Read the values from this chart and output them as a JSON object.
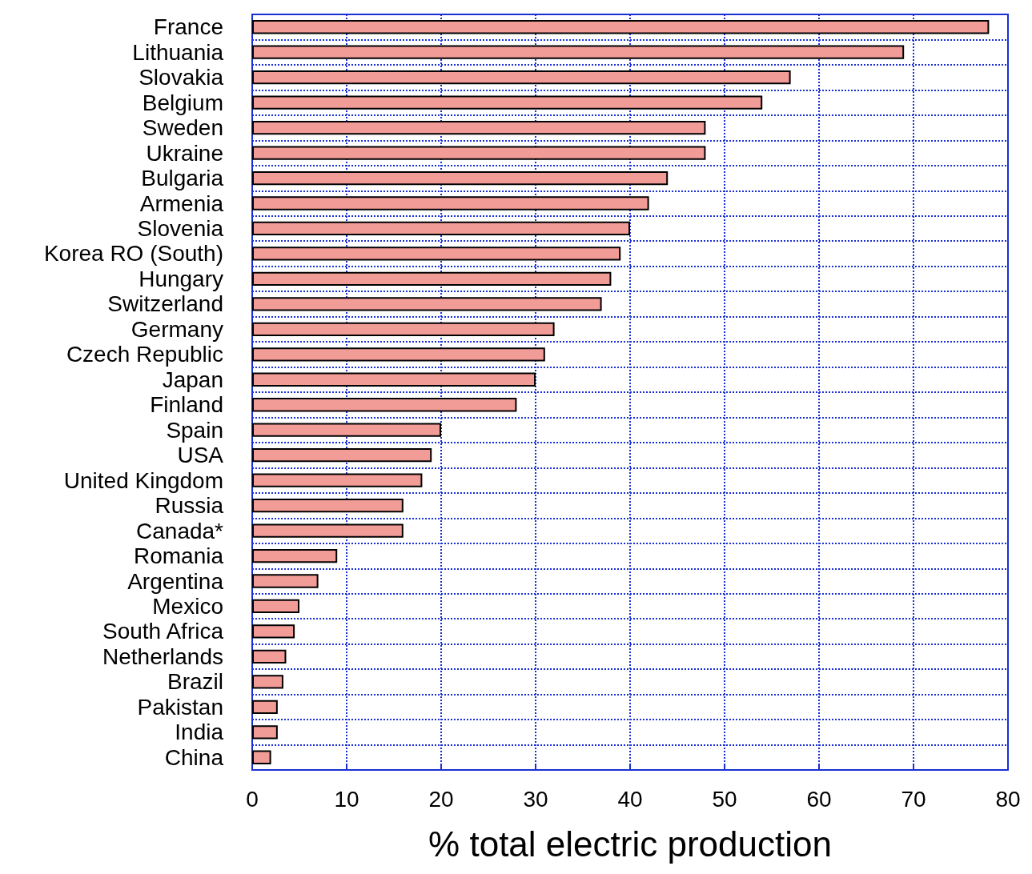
{
  "chart_data": {
    "type": "bar",
    "orientation": "horizontal",
    "xlabel": "% total electric production",
    "categories": [
      "France",
      "Lithuania",
      "Slovakia",
      "Belgium",
      "Sweden",
      "Ukraine",
      "Bulgaria",
      "Armenia",
      "Slovenia",
      "Korea RO (South)",
      "Hungary",
      "Switzerland",
      "Germany",
      "Czech Republic",
      "Japan",
      "Finland",
      "Spain",
      "USA",
      "United Kingdom",
      "Russia",
      "Canada*",
      "Romania",
      "Argentina",
      "Mexico",
      "South Africa",
      "Netherlands",
      "Brazil",
      "Pakistan",
      "India",
      "China"
    ],
    "values": [
      78,
      69,
      57,
      54,
      48,
      48,
      44,
      42,
      40,
      39,
      38,
      37,
      32,
      31,
      30,
      28,
      20,
      19,
      18,
      16,
      16,
      9,
      7,
      5,
      4.5,
      3.6,
      3.3,
      2.7,
      2.7,
      2
    ],
    "color": "#f29c98",
    "xlim": [
      0,
      80
    ],
    "xticks": [
      0,
      10,
      20,
      30,
      40,
      50,
      60,
      70,
      80
    ],
    "grid": true
  }
}
